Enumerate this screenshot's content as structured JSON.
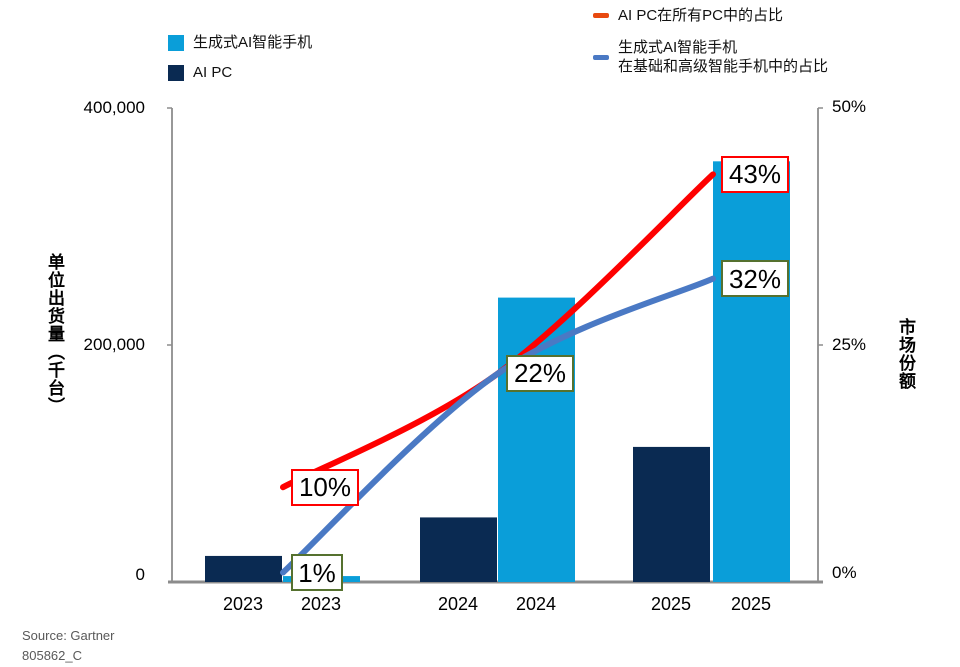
{
  "legend_bars": {
    "items": [
      {
        "label": "生成式AI智能手机",
        "color": "#0a9ed9"
      },
      {
        "label": "AI PC",
        "color": "#0a2a52"
      }
    ]
  },
  "legend_lines": {
    "items": [
      {
        "label": "AI PC在所有PC中的占比",
        "marker_color": "#e8490f"
      },
      {
        "label_line1": "生成式AI智能手机",
        "label_line2": "在基础和高级智能手机中的占比",
        "marker_color": "#4a79c4"
      }
    ]
  },
  "chart_data": {
    "type": "bar+line combo",
    "categories": [
      "2023",
      "2024",
      "2025"
    ],
    "x_labels": [
      "2023",
      "2023",
      "2024",
      "2024",
      "2025",
      "2025"
    ],
    "bar_series": [
      {
        "name": "AI PC",
        "color": "#0a2a52",
        "values_thousand_units": [
          22000,
          54500,
          114000
        ]
      },
      {
        "name": "生成式AI智能手机",
        "color": "#0a9ed9",
        "values_thousand_units": [
          5000,
          240000,
          355000
        ]
      }
    ],
    "line_series": [
      {
        "name": "AI PC在所有PC中的占比",
        "color": "#fe0000",
        "values_pct": [
          10,
          22,
          43
        ],
        "point_labels": [
          "10%",
          null,
          "43%"
        ],
        "label_border_color": "#ff0000"
      },
      {
        "name": "生成式AI智能手机在基础和高级智能手机中的占比",
        "color": "#4a79c4",
        "values_pct": [
          1,
          22,
          32
        ],
        "point_labels": [
          "1%",
          "22%",
          "32%"
        ],
        "label_border_color": "#55712f"
      }
    ],
    "left_axis": {
      "title": "单位出货量（千台）",
      "max": 400000,
      "tick_labels_top_to_bottom": [
        "400,000",
        "200,000",
        "0"
      ]
    },
    "right_axis": {
      "title": "市场份额",
      "max_pct": 50,
      "tick_labels_top_to_bottom": [
        "50%",
        "25%",
        "0%"
      ]
    },
    "grid": false,
    "legend_position": "top"
  },
  "source": {
    "line1": "Source: Gartner",
    "line2": "805862_C"
  }
}
